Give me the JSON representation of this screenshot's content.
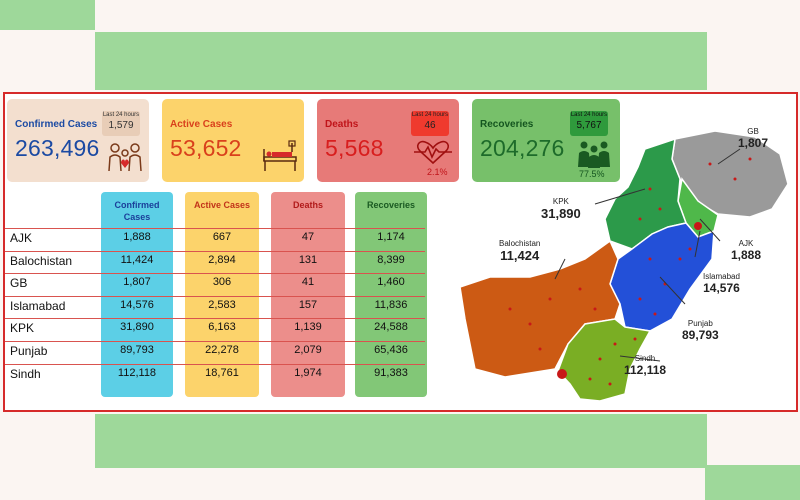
{
  "cards": {
    "confirmed": {
      "title": "Confirmed Cases",
      "value": "263,496",
      "badge_label": "Last 24 hours",
      "badge_value": "1,579"
    },
    "active": {
      "title": "Active Cases",
      "value": "53,652"
    },
    "deaths": {
      "title": "Deaths",
      "value": "5,568",
      "badge_label": "Last 24 hours",
      "badge_value": "46",
      "pct": "2.1%"
    },
    "recoveries": {
      "title": "Recoveries",
      "value": "204,276",
      "badge_label": "Last 24 hours",
      "badge_value": "5,767",
      "pct": "77.5%"
    }
  },
  "chart_data": {
    "type": "table",
    "columns": [
      "Confirmed Cases",
      "Active Cases",
      "Deaths",
      "Recoveries"
    ],
    "rows": [
      {
        "region": "AJK",
        "values": [
          "1,888",
          "667",
          "47",
          "1,174"
        ]
      },
      {
        "region": "Balochistan",
        "values": [
          "11,424",
          "2,894",
          "131",
          "8,399"
        ]
      },
      {
        "region": "GB",
        "values": [
          "1,807",
          "306",
          "41",
          "1,460"
        ]
      },
      {
        "region": "Islamabad",
        "values": [
          "14,576",
          "2,583",
          "157",
          "11,836"
        ]
      },
      {
        "region": "KPK",
        "values": [
          "31,890",
          "6,163",
          "1,139",
          "24,588"
        ]
      },
      {
        "region": "Punjab",
        "values": [
          "89,793",
          "22,278",
          "2,079",
          "65,436"
        ]
      },
      {
        "region": "Sindh",
        "values": [
          "112,118",
          "18,761",
          "1,974",
          "91,383"
        ]
      }
    ]
  },
  "map": {
    "labels": {
      "gb": {
        "name": "GB",
        "value": "1,807"
      },
      "kpk": {
        "name": "KPK",
        "value": "31,890"
      },
      "ajk": {
        "name": "AJK",
        "value": "1,888"
      },
      "balochistan": {
        "name": "Balochistan",
        "value": "11,424"
      },
      "islamabad": {
        "name": "Islamabad",
        "value": "14,576"
      },
      "punjab": {
        "name": "Punjab",
        "value": "89,793"
      },
      "sindh": {
        "name": "Sindh",
        "value": "112,118"
      }
    },
    "colors": {
      "balochistan": "#cc5a14",
      "sindh": "#7aae24",
      "punjab": "#2350d8",
      "kpk": "#2c9a4a",
      "ajk": "#4fb84a",
      "gb": "#9a9a9a"
    }
  },
  "colors": {
    "confirmed_bg": "#f3dfcf",
    "confirmed_text": "#1b4aa3",
    "active_bg": "#fcd36b",
    "active_text": "#d9401c",
    "deaths_bg": "#e77a78",
    "deaths_text": "#d81e1e",
    "recoveries_bg": "#77c06a",
    "recoveries_text": "#1d6b2a",
    "col_confirmed": "#5ccfe6",
    "col_active": "#fcd36b",
    "col_deaths": "#ec8e8b",
    "col_recoveries": "#82c777"
  },
  "icons": [
    "family-icon",
    "hospital-bed-icon",
    "heartbeat-icon",
    "recovered-people-icon"
  ]
}
